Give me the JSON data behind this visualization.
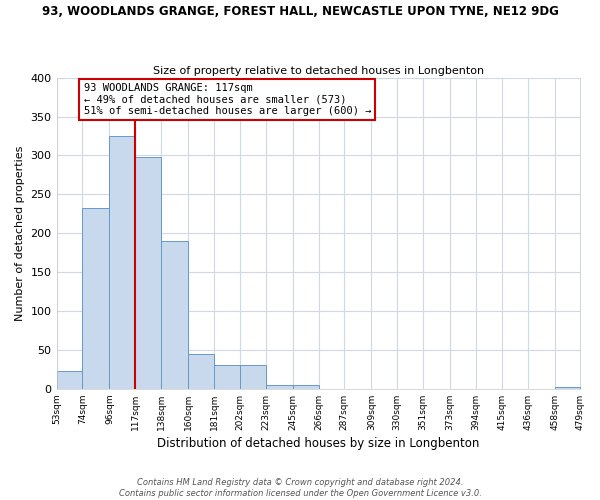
{
  "title": "93, WOODLANDS GRANGE, FOREST HALL, NEWCASTLE UPON TYNE, NE12 9DG",
  "subtitle": "Size of property relative to detached houses in Longbenton",
  "xlabel": "Distribution of detached houses by size in Longbenton",
  "ylabel": "Number of detached properties",
  "bar_edges": [
    53,
    74,
    96,
    117,
    138,
    160,
    181,
    202,
    223,
    245,
    266,
    287,
    309,
    330,
    351,
    373,
    394,
    415,
    436,
    458,
    479
  ],
  "bar_heights": [
    23,
    232,
    325,
    298,
    190,
    45,
    30,
    30,
    5,
    5,
    0,
    0,
    0,
    0,
    0,
    0,
    0,
    0,
    0,
    2
  ],
  "bar_color": "#c8d9ee",
  "bar_edgecolor": "#6699cc",
  "vline_x": 117,
  "vline_color": "#cc0000",
  "annotation_text": "93 WOODLANDS GRANGE: 117sqm\n← 49% of detached houses are smaller (573)\n51% of semi-detached houses are larger (600) →",
  "annotation_box_edgecolor": "#cc0000",
  "annotation_box_facecolor": "#ffffff",
  "ylim": [
    0,
    400
  ],
  "yticks": [
    0,
    50,
    100,
    150,
    200,
    250,
    300,
    350,
    400
  ],
  "tick_labels": [
    "53sqm",
    "74sqm",
    "96sqm",
    "117sqm",
    "138sqm",
    "160sqm",
    "181sqm",
    "202sqm",
    "223sqm",
    "245sqm",
    "266sqm",
    "287sqm",
    "309sqm",
    "330sqm",
    "351sqm",
    "373sqm",
    "394sqm",
    "415sqm",
    "436sqm",
    "458sqm",
    "479sqm"
  ],
  "footer_text": "Contains HM Land Registry data © Crown copyright and database right 2024.\nContains public sector information licensed under the Open Government Licence v3.0.",
  "background_color": "#ffffff",
  "grid_color": "#d0d8e8"
}
